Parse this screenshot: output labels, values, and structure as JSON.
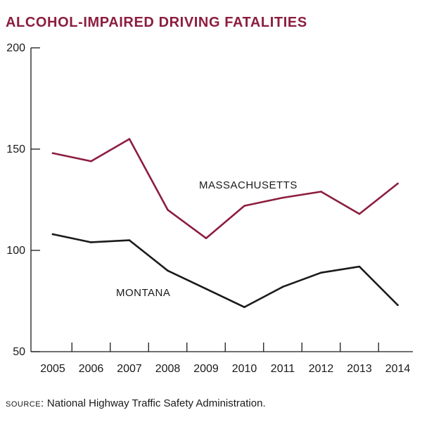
{
  "chart_data": {
    "type": "line",
    "title": "ALCOHOL-IMPAIRED DRIVING FATALITIES",
    "xlabel": "",
    "ylabel": "",
    "categories": [
      "2005",
      "2006",
      "2007",
      "2008",
      "2009",
      "2010",
      "2011",
      "2012",
      "2013",
      "2014"
    ],
    "ylim": [
      50,
      200
    ],
    "yticks": [
      50,
      100,
      150,
      200
    ],
    "grid": false,
    "legend": "inline labels",
    "series": [
      {
        "name": "MASSACHUSETTS",
        "color": "#8c1d3f",
        "values": [
          148,
          144,
          155,
          120,
          106,
          122,
          126,
          129,
          118,
          133
        ]
      },
      {
        "name": "MONTANA",
        "color": "#1a1a1a",
        "values": [
          108,
          104,
          105,
          90,
          81,
          72,
          82,
          89,
          92,
          73
        ]
      }
    ]
  },
  "source": {
    "key": "SOURCE:",
    "text": "National Highway Traffic Safety Administration."
  }
}
